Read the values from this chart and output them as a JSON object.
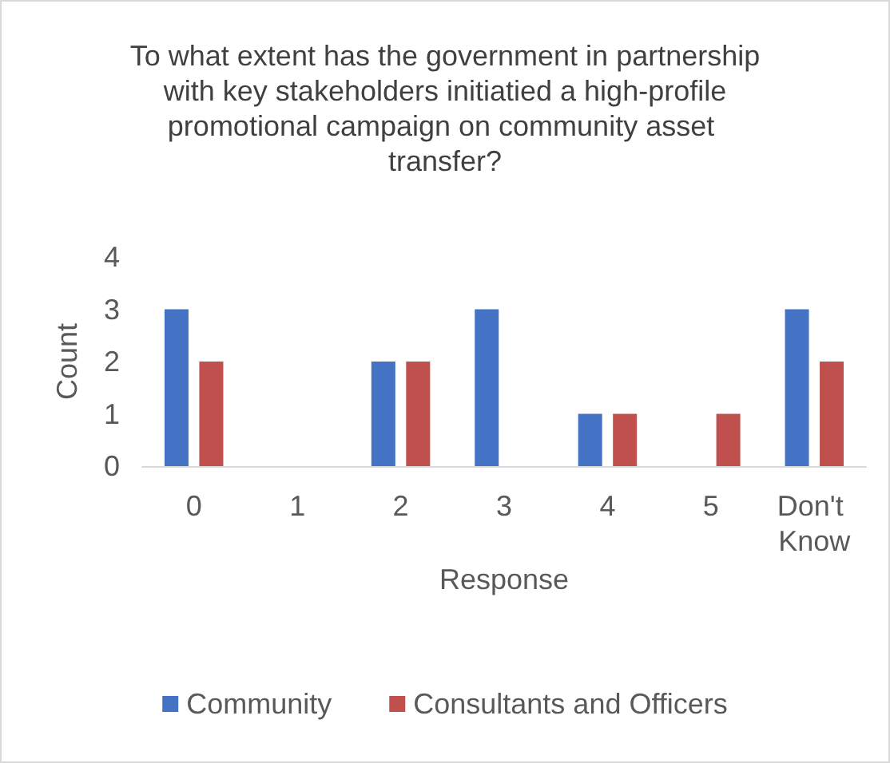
{
  "chart_data": {
    "type": "bar",
    "title": "To what extent has the government in partnership with key stakeholders initiatied a high-profile promotional campaign on community asset transfer?",
    "xlabel": "Response",
    "ylabel": "Count",
    "categories": [
      "0",
      "1",
      "2",
      "3",
      "4",
      "5",
      "Don't Know"
    ],
    "series": [
      {
        "name": "Community",
        "color": "#4472c4",
        "values": [
          3,
          0,
          2,
          3,
          1,
          0,
          3
        ]
      },
      {
        "name": "Consultants and Officers",
        "color": "#c0504d",
        "values": [
          2,
          0,
          2,
          0,
          1,
          1,
          2
        ]
      }
    ],
    "ylim": [
      0,
      4
    ],
    "yticks": [
      0,
      1,
      2,
      3,
      4
    ],
    "grid": false,
    "legend": "bottom"
  }
}
